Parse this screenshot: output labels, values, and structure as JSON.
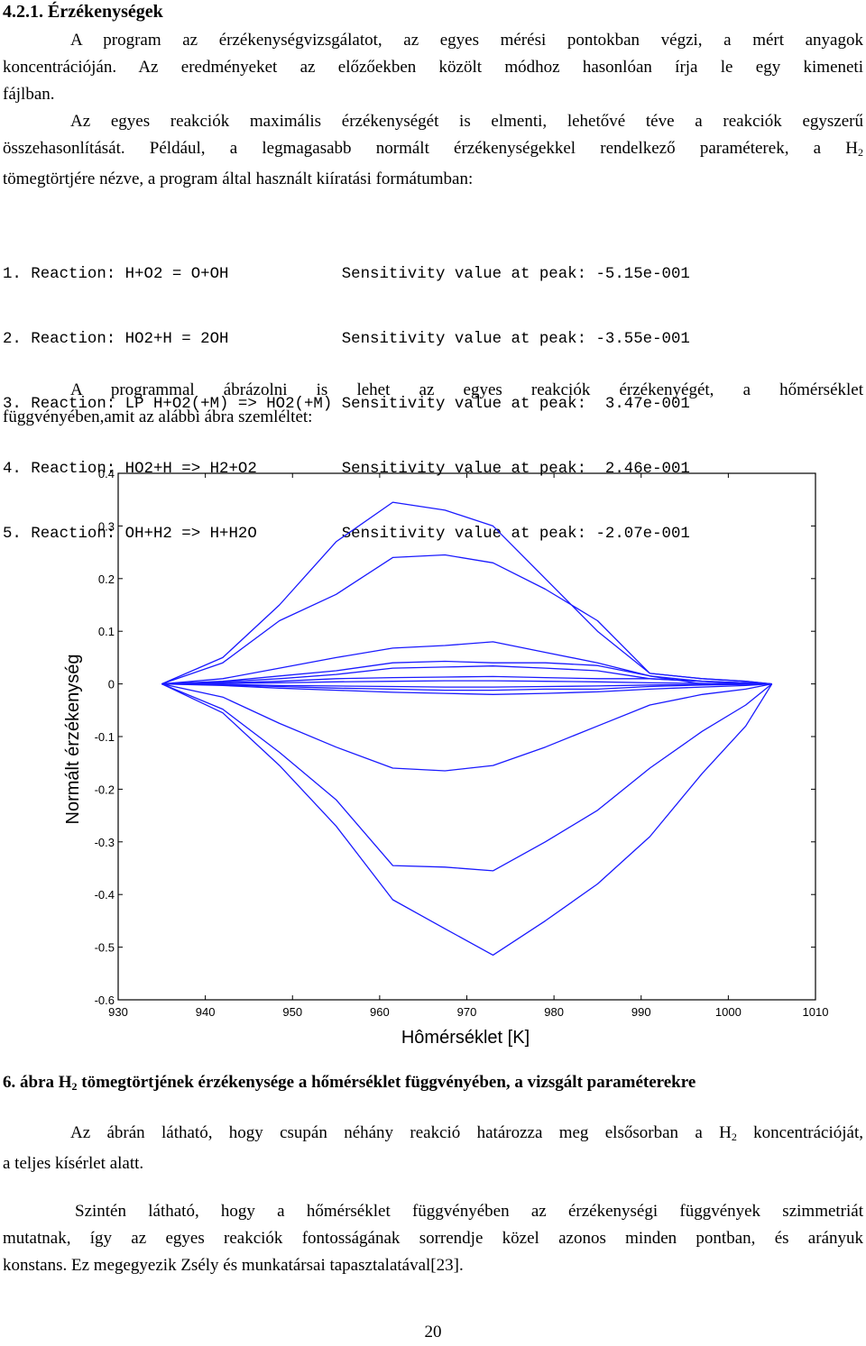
{
  "section_heading": "4.2.1. Érzékenységek",
  "para1": {
    "line1": "A program az érzékenységvizsgálatot, az egyes mérési pontokban végzi, a mért anyagok",
    "line2": "koncentrációján. Az eredményeket az előzőekben közölt módhoz hasonlóan írja le egy kimeneti",
    "line3": "fájlban."
  },
  "para2": {
    "line1": "Az egyes reakciók maximális érzékenységét is elmenti, lehetővé téve a reakciók egyszerű",
    "line2_pre": "összehasonlítását. Például, a legmagasabb normált érzékenységekkel rendelkező paraméterek, a H",
    "line2_sub": "2",
    "line3": "tömegtörtjére nézve, a program által használt kiíratási formátumban:"
  },
  "output_lines": [
    "1. Reaction: H+O2 = O+OH            Sensitivity value at peak: -5.15e-001",
    "2. Reaction: HO2+H = 2OH            Sensitivity value at peak: -3.55e-001",
    "3. Reaction: LP H+O2(+M) => HO2(+M) Sensitivity value at peak:  3.47e-001",
    "4. Reaction: HO2+H => H2+O2         Sensitivity value at peak:  2.46e-001",
    "5. Reaction: OH+H2 => H+H2O         Sensitivity value at peak: -2.07e-001"
  ],
  "para3": {
    "line1": "A programmal ábrázolni is lehet az egyes reakciók érzékenyégét, a hőmérséklet",
    "line2": "függvényében,amit az alábbi ábra szemléltet:"
  },
  "chart_data": {
    "type": "line",
    "title": "",
    "xlabel": "Hômérséklet [K]",
    "ylabel": "Normált érzékenység",
    "xlim": [
      930,
      1010
    ],
    "ylim": [
      -0.6,
      0.4
    ],
    "xticks": [
      "930",
      "940",
      "950",
      "960",
      "970",
      "980",
      "990",
      "1000",
      "1010"
    ],
    "yticks": [
      "0.4",
      "0.3",
      "0.2",
      "0.1",
      "0",
      "-0.1",
      "-0.2",
      "-0.3",
      "-0.4",
      "-0.5",
      "-0.6"
    ],
    "grid": false,
    "line_color": "#1a1aff",
    "x": [
      935,
      942,
      948.5,
      955,
      961.5,
      967.5,
      973,
      979,
      985,
      991,
      997,
      1002,
      1005
    ],
    "series": [
      {
        "values": [
          0,
          -0.055,
          -0.155,
          -0.27,
          -0.41,
          -0.465,
          -0.515,
          -0.45,
          -0.38,
          -0.29,
          -0.17,
          -0.08,
          0
        ]
      },
      {
        "values": [
          0,
          -0.048,
          -0.13,
          -0.22,
          -0.345,
          -0.348,
          -0.355,
          -0.3,
          -0.24,
          -0.16,
          -0.09,
          -0.04,
          0
        ]
      },
      {
        "values": [
          0,
          0.05,
          0.15,
          0.27,
          0.345,
          0.33,
          0.3,
          0.2,
          0.1,
          0.02,
          0.01,
          0.005,
          0
        ]
      },
      {
        "values": [
          0,
          0.04,
          0.12,
          0.17,
          0.24,
          0.245,
          0.23,
          0.18,
          0.12,
          0.02,
          0.01,
          0.005,
          0
        ]
      },
      {
        "values": [
          0,
          -0.025,
          -0.075,
          -0.12,
          -0.16,
          -0.165,
          -0.155,
          -0.12,
          -0.08,
          -0.04,
          -0.02,
          -0.01,
          0
        ]
      },
      {
        "values": [
          0,
          0.01,
          0.03,
          0.05,
          0.068,
          0.073,
          0.08,
          0.06,
          0.04,
          0.015,
          0.0,
          0.0,
          0
        ]
      },
      {
        "values": [
          0,
          0.005,
          0.015,
          0.025,
          0.04,
          0.043,
          0.04,
          0.04,
          0.035,
          0.015,
          0.005,
          0.0,
          0
        ]
      },
      {
        "values": [
          0,
          0.004,
          0.01,
          0.018,
          0.03,
          0.032,
          0.034,
          0.03,
          0.025,
          0.01,
          0.005,
          0.002,
          0
        ]
      },
      {
        "values": [
          0,
          0.002,
          0.005,
          0.01,
          0.012,
          0.013,
          0.014,
          0.012,
          0.01,
          0.01,
          0.005,
          0.002,
          0
        ]
      },
      {
        "values": [
          0,
          -0.002,
          -0.005,
          -0.008,
          -0.01,
          -0.012,
          -0.012,
          -0.01,
          -0.01,
          -0.005,
          -0.002,
          -0.001,
          0
        ]
      },
      {
        "values": [
          0,
          -0.003,
          -0.008,
          -0.012,
          -0.016,
          -0.018,
          -0.02,
          -0.018,
          -0.015,
          -0.01,
          -0.006,
          -0.003,
          0
        ]
      },
      {
        "values": [
          0,
          0.001,
          0.002,
          0.004,
          0.005,
          0.006,
          0.006,
          0.005,
          0.004,
          0.002,
          0.001,
          0.0,
          0
        ]
      },
      {
        "values": [
          0,
          -0.001,
          -0.003,
          -0.004,
          -0.005,
          -0.006,
          -0.006,
          -0.005,
          -0.004,
          -0.002,
          -0.001,
          0.0,
          0
        ]
      }
    ]
  },
  "caption": {
    "pre": "6. ábra H",
    "sub": "2",
    "post": " tömegtörtjének érzékenysége a hőmérséklet függvényében, a vizsgált paraméterekre"
  },
  "para4": {
    "line1_pre": "Az ábrán látható, hogy csupán néhány reakció határozza meg elsősorban a H",
    "line1_sub": "2",
    "line1_post": " koncentrációját,",
    "line2": "a teljes kísérlet alatt."
  },
  "para5": {
    "line1": "Szintén látható, hogy a hőmérséklet függvényében az érzékenységi függvények szimmetriát",
    "line2": "mutatnak, így az egyes reakciók fontosságának sorrendje közel azonos minden pontban, és arányuk",
    "line3": "konstans. Ez megegyezik Zsély és munkatársai tapasztalatával[23]."
  },
  "page_number": "20"
}
